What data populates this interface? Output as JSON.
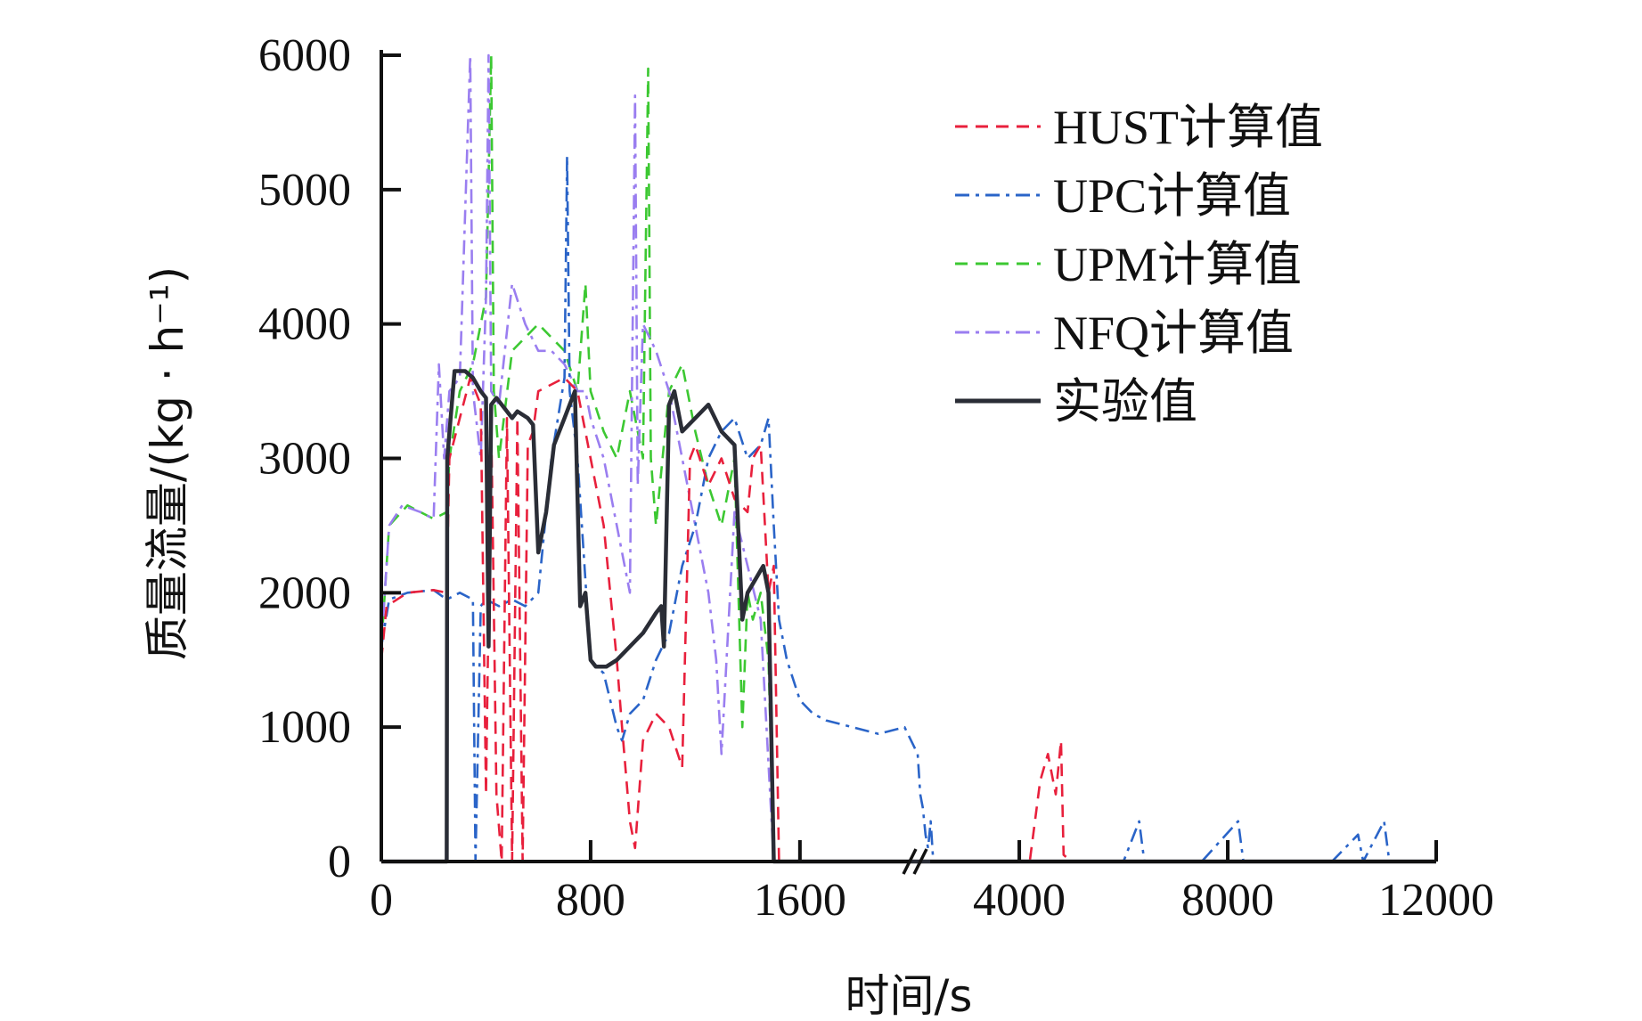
{
  "chart_data": {
    "type": "line",
    "xlabel": "时间/s",
    "ylabel": "质量流量/(kg · h⁻¹)",
    "x_ticks": [
      "0",
      "800",
      "1600",
      "4000",
      "8000",
      "12000"
    ],
    "y_ticks": [
      "0",
      "1000",
      "2000",
      "3000",
      "4000",
      "5000",
      "6000"
    ],
    "xlim": [
      0,
      12000
    ],
    "ylim": [
      0,
      6000
    ],
    "x_axis_break": "between 1600 and 4000",
    "grid": false,
    "legend_position": "top-right",
    "series": [
      {
        "name": "HUST计算值",
        "color": "#e8203c",
        "dash": "dashed",
        "points": [
          [
            0,
            1500
          ],
          [
            20,
            1900
          ],
          [
            100,
            2000
          ],
          [
            200,
            2020
          ],
          [
            250,
            2000
          ],
          [
            260,
            3000
          ],
          [
            300,
            3300
          ],
          [
            340,
            3600
          ],
          [
            380,
            3400
          ],
          [
            400,
            500
          ],
          [
            420,
            3300
          ],
          [
            440,
            500
          ],
          [
            460,
            0
          ],
          [
            480,
            3300
          ],
          [
            500,
            0
          ],
          [
            520,
            3300
          ],
          [
            540,
            0
          ],
          [
            560,
            3100
          ],
          [
            580,
            3200
          ],
          [
            600,
            3500
          ],
          [
            700,
            3600
          ],
          [
            750,
            3500
          ],
          [
            800,
            3000
          ],
          [
            850,
            2500
          ],
          [
            900,
            1500
          ],
          [
            920,
            1000
          ],
          [
            950,
            300
          ],
          [
            970,
            100
          ],
          [
            1000,
            900
          ],
          [
            1050,
            1100
          ],
          [
            1100,
            1000
          ],
          [
            1150,
            700
          ],
          [
            1180,
            3000
          ],
          [
            1200,
            3100
          ],
          [
            1250,
            2800
          ],
          [
            1300,
            3000
          ],
          [
            1350,
            2700
          ],
          [
            1400,
            2600
          ],
          [
            1420,
            3000
          ],
          [
            1450,
            3100
          ],
          [
            1480,
            2000
          ],
          [
            1500,
            2200
          ],
          [
            1520,
            0
          ],
          [
            3300,
            0
          ],
          [
            4000,
            0
          ],
          [
            4200,
            0
          ],
          [
            4400,
            600
          ],
          [
            4550,
            800
          ],
          [
            4700,
            500
          ],
          [
            4800,
            900
          ],
          [
            4850,
            50
          ],
          [
            5000,
            0
          ],
          [
            12000,
            0
          ]
        ]
      },
      {
        "name": "UPC计算值",
        "color": "#2a64c8",
        "dash": "dash-dot",
        "points": [
          [
            0,
            1600
          ],
          [
            30,
            1950
          ],
          [
            100,
            2000
          ],
          [
            200,
            2020
          ],
          [
            250,
            1950
          ],
          [
            300,
            2000
          ],
          [
            350,
            1950
          ],
          [
            360,
            0
          ],
          [
            380,
            1900
          ],
          [
            400,
            1950
          ],
          [
            450,
            1900
          ],
          [
            500,
            1950
          ],
          [
            550,
            1900
          ],
          [
            600,
            2000
          ],
          [
            650,
            3000
          ],
          [
            700,
            3600
          ],
          [
            710,
            5250
          ],
          [
            720,
            3500
          ],
          [
            750,
            3000
          ],
          [
            800,
            1500
          ],
          [
            850,
            1400
          ],
          [
            900,
            1000
          ],
          [
            920,
            900
          ],
          [
            950,
            1100
          ],
          [
            1000,
            1200
          ],
          [
            1050,
            1500
          ],
          [
            1100,
            1700
          ],
          [
            1150,
            2200
          ],
          [
            1200,
            2500
          ],
          [
            1250,
            3000
          ],
          [
            1300,
            3200
          ],
          [
            1350,
            3300
          ],
          [
            1400,
            3000
          ],
          [
            1450,
            3100
          ],
          [
            1480,
            3300
          ],
          [
            1500,
            2500
          ],
          [
            1520,
            1800
          ],
          [
            1550,
            1500
          ],
          [
            1600,
            1200
          ],
          [
            1650,
            1100
          ],
          [
            1700,
            1050
          ],
          [
            1800,
            1000
          ],
          [
            1900,
            950
          ],
          [
            2000,
            1000
          ],
          [
            2050,
            800
          ],
          [
            2100,
            500
          ],
          [
            2150,
            400
          ],
          [
            2200,
            200
          ],
          [
            2250,
            100
          ],
          [
            2300,
            300
          ],
          [
            2350,
            0
          ],
          [
            3000,
            0
          ],
          [
            3500,
            0
          ],
          [
            4000,
            0
          ],
          [
            5000,
            0
          ],
          [
            6000,
            0
          ],
          [
            6300,
            300
          ],
          [
            6400,
            0
          ],
          [
            7000,
            0
          ],
          [
            7500,
            0
          ],
          [
            8200,
            300
          ],
          [
            8300,
            0
          ],
          [
            9000,
            0
          ],
          [
            10000,
            0
          ],
          [
            10500,
            200
          ],
          [
            10600,
            0
          ],
          [
            11000,
            300
          ],
          [
            11100,
            0
          ],
          [
            12000,
            0
          ]
        ]
      },
      {
        "name": "UPM计算值",
        "color": "#3cc832",
        "dash": "dashed",
        "points": [
          [
            0,
            1600
          ],
          [
            30,
            2500
          ],
          [
            100,
            2650
          ],
          [
            150,
            2600
          ],
          [
            200,
            2550
          ],
          [
            250,
            2600
          ],
          [
            260,
            3000
          ],
          [
            300,
            3500
          ],
          [
            350,
            3700
          ],
          [
            400,
            4200
          ],
          [
            420,
            6000
          ],
          [
            430,
            3500
          ],
          [
            450,
            3000
          ],
          [
            500,
            3800
          ],
          [
            550,
            3900
          ],
          [
            600,
            4000
          ],
          [
            650,
            3900
          ],
          [
            700,
            3800
          ],
          [
            750,
            3500
          ],
          [
            780,
            4300
          ],
          [
            800,
            3500
          ],
          [
            850,
            3200
          ],
          [
            900,
            3000
          ],
          [
            950,
            3500
          ],
          [
            1000,
            3000
          ],
          [
            1020,
            5900
          ],
          [
            1030,
            3000
          ],
          [
            1050,
            2500
          ],
          [
            1100,
            3500
          ],
          [
            1150,
            3700
          ],
          [
            1200,
            3200
          ],
          [
            1250,
            2800
          ],
          [
            1300,
            2500
          ],
          [
            1350,
            3000
          ],
          [
            1380,
            1000
          ],
          [
            1400,
            2000
          ],
          [
            1420,
            1800
          ],
          [
            1450,
            2000
          ],
          [
            1480,
            1500
          ],
          [
            1500,
            0
          ],
          [
            12000,
            0
          ]
        ]
      },
      {
        "name": "NFQ计算值",
        "color": "#9a7ef0",
        "dash": "dash-dot",
        "points": [
          [
            0,
            1600
          ],
          [
            30,
            2500
          ],
          [
            80,
            2650
          ],
          [
            150,
            2600
          ],
          [
            200,
            2550
          ],
          [
            220,
            3700
          ],
          [
            240,
            3000
          ],
          [
            260,
            3500
          ],
          [
            300,
            3600
          ],
          [
            340,
            6000
          ],
          [
            350,
            3500
          ],
          [
            380,
            3000
          ],
          [
            400,
            4200
          ],
          [
            410,
            6000
          ],
          [
            420,
            3500
          ],
          [
            450,
            3400
          ],
          [
            500,
            4300
          ],
          [
            550,
            4000
          ],
          [
            600,
            3800
          ],
          [
            650,
            3800
          ],
          [
            700,
            3700
          ],
          [
            750,
            3500
          ],
          [
            780,
            3500
          ],
          [
            800,
            3300
          ],
          [
            850,
            3000
          ],
          [
            900,
            2500
          ],
          [
            950,
            2000
          ],
          [
            970,
            5700
          ],
          [
            980,
            2800
          ],
          [
            1000,
            4000
          ],
          [
            1050,
            3800
          ],
          [
            1100,
            3500
          ],
          [
            1150,
            3000
          ],
          [
            1200,
            2500
          ],
          [
            1250,
            2000
          ],
          [
            1280,
            1500
          ],
          [
            1300,
            800
          ],
          [
            1350,
            2600
          ],
          [
            1400,
            2200
          ],
          [
            1450,
            1800
          ],
          [
            1500,
            0
          ],
          [
            12000,
            0
          ]
        ]
      },
      {
        "name": "实验值",
        "color": "#2a2d36",
        "dash": "solid",
        "points": [
          [
            0,
            0
          ],
          [
            250,
            0
          ],
          [
            252,
            3000
          ],
          [
            280,
            3650
          ],
          [
            320,
            3650
          ],
          [
            350,
            3600
          ],
          [
            380,
            3500
          ],
          [
            400,
            3450
          ],
          [
            410,
            1600
          ],
          [
            420,
            3400
          ],
          [
            440,
            3450
          ],
          [
            480,
            3350
          ],
          [
            500,
            3300
          ],
          [
            520,
            3350
          ],
          [
            560,
            3300
          ],
          [
            580,
            3250
          ],
          [
            600,
            2300
          ],
          [
            630,
            2600
          ],
          [
            660,
            3100
          ],
          [
            700,
            3300
          ],
          [
            720,
            3400
          ],
          [
            740,
            3500
          ],
          [
            760,
            1900
          ],
          [
            780,
            2000
          ],
          [
            800,
            1500
          ],
          [
            820,
            1450
          ],
          [
            860,
            1450
          ],
          [
            900,
            1500
          ],
          [
            950,
            1600
          ],
          [
            1000,
            1700
          ],
          [
            1050,
            1850
          ],
          [
            1070,
            1900
          ],
          [
            1080,
            1600
          ],
          [
            1100,
            3400
          ],
          [
            1120,
            3500
          ],
          [
            1150,
            3200
          ],
          [
            1200,
            3300
          ],
          [
            1250,
            3400
          ],
          [
            1300,
            3200
          ],
          [
            1350,
            3100
          ],
          [
            1380,
            1800
          ],
          [
            1400,
            2000
          ],
          [
            1430,
            2100
          ],
          [
            1460,
            2200
          ],
          [
            1480,
            2000
          ],
          [
            1500,
            0
          ],
          [
            12000,
            0
          ]
        ]
      }
    ]
  }
}
